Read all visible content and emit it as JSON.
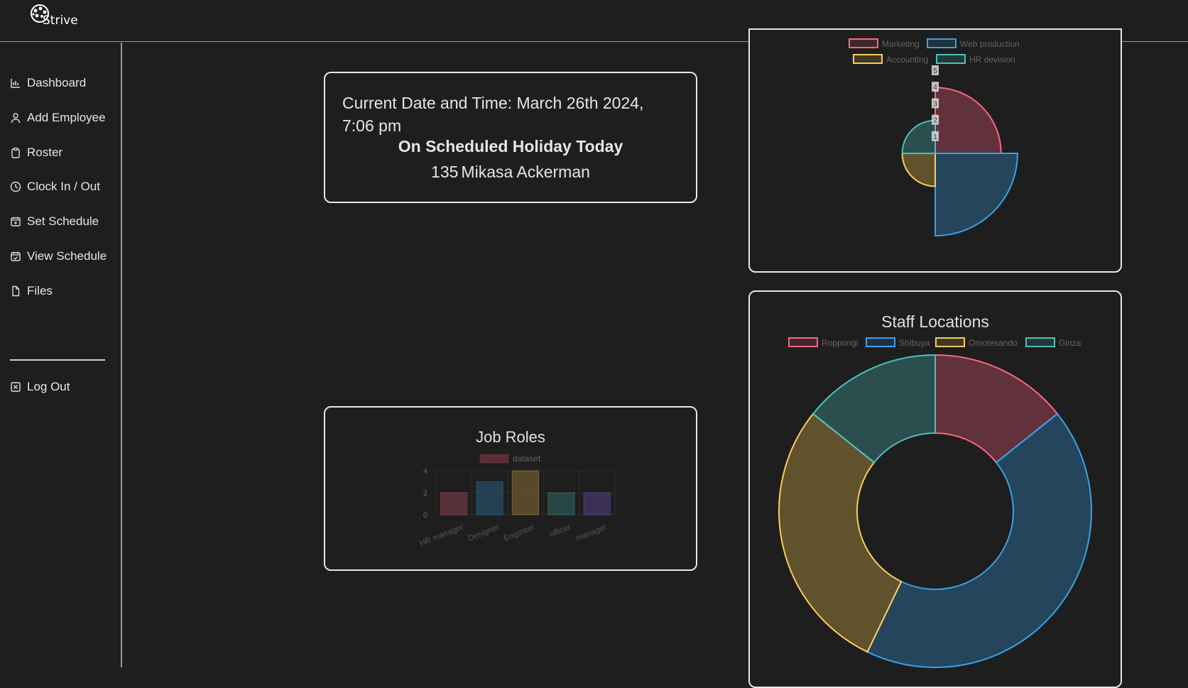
{
  "app": {
    "logo_text": "Strive"
  },
  "sidebar": {
    "items": [
      {
        "label": "Dashboard",
        "icon": "bar-chart-icon"
      },
      {
        "label": "Add Employee",
        "icon": "person-icon"
      },
      {
        "label": "Roster",
        "icon": "clipboard-icon"
      },
      {
        "label": "Clock In / Out",
        "icon": "clock-icon"
      },
      {
        "label": "Set Schedule",
        "icon": "calendar-plus-icon"
      },
      {
        "label": "View Schedule",
        "icon": "calendar-check-icon"
      },
      {
        "label": "Files",
        "icon": "file-icon"
      }
    ],
    "logout_label": "Log Out"
  },
  "status_card": {
    "datetime_text": "Current Date and Time: March 26th 2024, 7:06 pm",
    "holiday_text": "On Scheduled Holiday Today",
    "employee_id": "135",
    "employee_name": "Mikasa Ackerman"
  },
  "colors": {
    "red": "#ff6384",
    "blue": "#36a2eb",
    "yellow": "#ffcd56",
    "teal": "#4bc0c0",
    "purple": "#9966ff"
  },
  "chart_data": [
    {
      "type": "bar",
      "title": "Job Roles",
      "legend": [
        "dataset"
      ],
      "categories": [
        "HR manager",
        "Designer",
        "Engineer",
        "officer",
        "manager"
      ],
      "values": [
        2,
        3,
        4,
        2,
        2
      ],
      "ylim": [
        0,
        4
      ],
      "yticks": [
        "0",
        "2",
        "4"
      ]
    },
    {
      "type": "polarArea",
      "title": "",
      "legend": [
        "Marketing",
        "Web production",
        "Accounting",
        "HR devision"
      ],
      "values": [
        4,
        5,
        2,
        2
      ],
      "rlim": [
        0,
        5
      ],
      "rticks": [
        "1",
        "2",
        "3",
        "4",
        "5"
      ]
    },
    {
      "type": "doughnut",
      "title": "Staff Locations",
      "legend": [
        "Roppongi",
        "Shibuya",
        "Omotesando",
        "Ginza"
      ],
      "values": [
        1,
        3,
        2,
        1
      ]
    }
  ]
}
